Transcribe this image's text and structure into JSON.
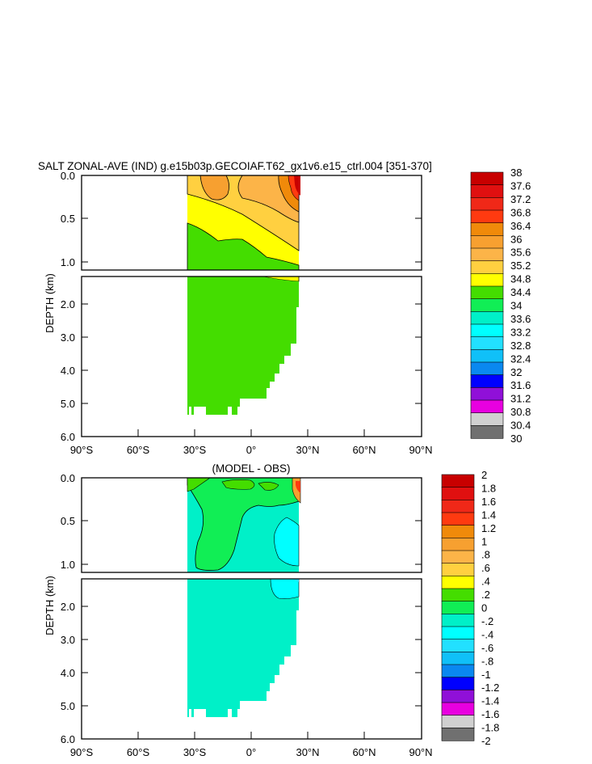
{
  "chart_data": [
    {
      "type": "heatmap",
      "title": "SALT ZONAL-AVE (IND) g.e15b03p.GECOIAF.T62_gx1v6.e15_ctrl.004 [351-370]",
      "ylabel": "DEPTH (km)",
      "xlabel": "",
      "x_ticks": [
        "90°S",
        "60°S",
        "30°S",
        "0°",
        "30°N",
        "60°N",
        "90°N"
      ],
      "y_ticks_upper": [
        "0.0",
        "0.5",
        "1.0"
      ],
      "y_ticks_lower": [
        "2.0",
        "3.0",
        "4.0",
        "5.0",
        "6.0"
      ],
      "xlim": [
        -90,
        90
      ],
      "ylim": [
        6.0,
        0.0
      ],
      "colorbar": {
        "labels": [
          "38",
          "37.6",
          "37.2",
          "36.8",
          "36.4",
          "36",
          "35.6",
          "35.2",
          "34.8",
          "34.4",
          "34",
          "33.6",
          "33.2",
          "32.8",
          "32.4",
          "32",
          "31.6",
          "31.2",
          "30.8",
          "30.4",
          "30"
        ],
        "colors": [
          "#c80000",
          "#e01010",
          "#f02818",
          "#ff3a10",
          "#f08a0a",
          "#f7a030",
          "#fcb448",
          "#ffd040",
          "#ffff00",
          "#44dd00",
          "#11ee55",
          "#00f0c8",
          "#00ffff",
          "#22e0ff",
          "#10c0f8",
          "#0a88f0",
          "#0000ff",
          "#9010d8",
          "#e800e0",
          "#d0d0d0",
          "#707070"
        ]
      }
    },
    {
      "type": "heatmap",
      "title": "(MODEL - OBS)",
      "ylabel": "DEPTH (km)",
      "xlabel": "",
      "x_ticks": [
        "90°S",
        "60°S",
        "30°S",
        "0°",
        "30°N",
        "60°N",
        "90°N"
      ],
      "y_ticks_upper": [
        "0.0",
        "0.5",
        "1.0"
      ],
      "y_ticks_lower": [
        "2.0",
        "3.0",
        "4.0",
        "5.0",
        "6.0"
      ],
      "xlim": [
        -90,
        90
      ],
      "ylim": [
        6.0,
        0.0
      ],
      "colorbar": {
        "labels": [
          "2",
          "1.8",
          "1.6",
          "1.4",
          "1.2",
          "1",
          ".8",
          ".6",
          ".4",
          ".2",
          "0",
          "-.2",
          "-.4",
          "-.6",
          "-.8",
          "-1",
          "-1.2",
          "-1.4",
          "-1.6",
          "-1.8",
          "-2"
        ],
        "colors": [
          "#c80000",
          "#e01010",
          "#f02818",
          "#ff3a10",
          "#f08a0a",
          "#f7a030",
          "#fcb448",
          "#ffd040",
          "#ffff00",
          "#44dd00",
          "#11ee55",
          "#00f0c8",
          "#00ffff",
          "#22e0ff",
          "#10c0f8",
          "#0a88f0",
          "#0000ff",
          "#9010d8",
          "#e800e0",
          "#d0d0d0",
          "#707070"
        ]
      }
    }
  ]
}
